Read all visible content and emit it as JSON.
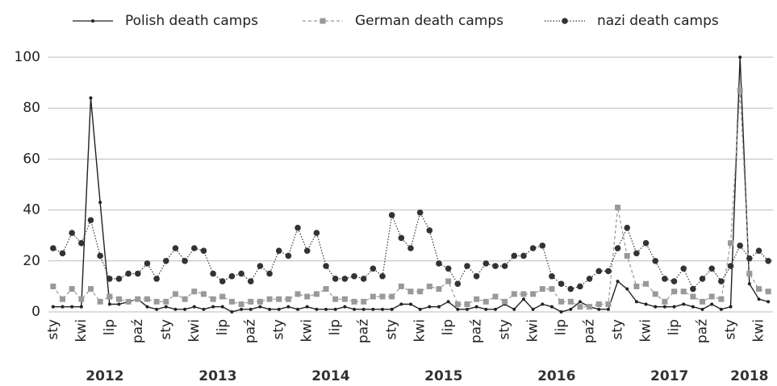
{
  "chart_data": {
    "type": "line",
    "categories": [
      "sty",
      null,
      null,
      "kwi",
      null,
      null,
      "lip",
      null,
      null,
      "paź",
      null,
      null,
      "sty",
      null,
      null,
      "kwi",
      null,
      null,
      "lip",
      null,
      null,
      "paź",
      null,
      null,
      "sty",
      null,
      null,
      "kwi",
      null,
      null,
      "lip",
      null,
      null,
      "paź",
      null,
      null,
      "sty",
      null,
      null,
      "kwi",
      null,
      null,
      "lip",
      null,
      null,
      "paź",
      null,
      null,
      "sty",
      null,
      null,
      "kwi",
      null,
      null,
      "lip",
      null,
      null,
      "paź",
      null,
      null,
      "sty",
      null,
      null,
      "kwi",
      null,
      null,
      "lip",
      null,
      null,
      "paź",
      null,
      null,
      "sty",
      null,
      null,
      "kwi",
      null
    ],
    "years": [
      "2012",
      "2013",
      "2014",
      "2015",
      "2016",
      "2017",
      "2018"
    ],
    "series": [
      {
        "name": "Polish death camps",
        "color": "#222222",
        "style": "solid",
        "marker": "diamond",
        "values": [
          2,
          2,
          2,
          2,
          84,
          43,
          3,
          3,
          4,
          5,
          2,
          1,
          2,
          1,
          1,
          2,
          1,
          2,
          2,
          0,
          1,
          1,
          2,
          1,
          1,
          2,
          1,
          2,
          1,
          1,
          1,
          2,
          1,
          1,
          1,
          1,
          1,
          3,
          3,
          1,
          2,
          2,
          4,
          1,
          1,
          2,
          1,
          1,
          3,
          1,
          5,
          1,
          3,
          2,
          0,
          1,
          4,
          2,
          1,
          1,
          12,
          9,
          4,
          3,
          2,
          2,
          2,
          3,
          2,
          1,
          3,
          1,
          2,
          100,
          11,
          5,
          4
        ]
      },
      {
        "name": "German death camps",
        "color": "#999999",
        "style": "dashed",
        "marker": "square",
        "values": [
          10,
          5,
          9,
          5,
          9,
          4,
          6,
          5,
          4,
          5,
          5,
          4,
          4,
          7,
          5,
          8,
          7,
          5,
          6,
          4,
          3,
          4,
          4,
          5,
          5,
          5,
          7,
          6,
          7,
          9,
          5,
          5,
          4,
          4,
          6,
          6,
          6,
          10,
          8,
          8,
          10,
          9,
          12,
          3,
          3,
          5,
          4,
          6,
          4,
          7,
          7,
          7,
          9,
          9,
          4,
          4,
          2,
          2,
          3,
          3,
          41,
          22,
          10,
          11,
          7,
          4,
          8,
          8,
          6,
          4,
          6,
          5,
          27,
          87,
          15,
          9,
          8
        ]
      },
      {
        "name": "nazi death camps",
        "color": "#333333",
        "style": "dotted",
        "marker": "circle",
        "values": [
          25,
          23,
          31,
          27,
          36,
          22,
          13,
          13,
          15,
          15,
          19,
          13,
          20,
          25,
          20,
          25,
          24,
          15,
          12,
          14,
          15,
          12,
          18,
          15,
          24,
          22,
          33,
          24,
          31,
          18,
          13,
          13,
          14,
          13,
          17,
          14,
          38,
          29,
          25,
          39,
          32,
          19,
          17,
          11,
          18,
          14,
          19,
          18,
          18,
          22,
          22,
          25,
          26,
          14,
          11,
          9,
          10,
          13,
          16,
          16,
          25,
          33,
          23,
          27,
          20,
          13,
          12,
          17,
          9,
          13,
          17,
          12,
          18,
          26,
          21,
          24,
          20
        ]
      }
    ],
    "ylim": [
      0,
      100
    ],
    "yticks": [
      0,
      20,
      40,
      60,
      80,
      100
    ],
    "grid": true,
    "legend": "top"
  }
}
